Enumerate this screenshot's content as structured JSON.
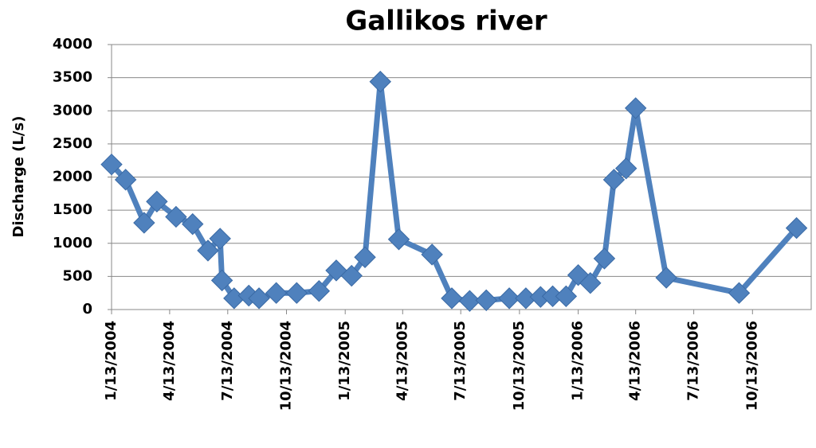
{
  "chart_data": {
    "type": "line",
    "title": "Gallikos river",
    "y_label": "Discharge (L/s)",
    "x": [
      "1/13/2004",
      "2/4/2004",
      "3/4/2004",
      "3/24/2004",
      "4/23/2004",
      "5/19/2004",
      "6/12/2004",
      "7/1/2004",
      "7/4/2004",
      "7/23/2004",
      "8/15/2004",
      "8/31/2004",
      "9/27/2004",
      "10/29/2004",
      "12/3/2004",
      "12/30/2004",
      "1/23/2005",
      "2/13/2005",
      "3/9/2005",
      "4/7/2005",
      "5/29/2005",
      "6/29/2005",
      "7/27/2005",
      "8/22/2005",
      "9/27/2005",
      "10/23/2005",
      "11/15/2005",
      "12/4/2005",
      "12/25/2005",
      "1/13/2006",
      "2/1/2006",
      "2/23/2006",
      "3/10/2006",
      "3/29/2006",
      "4/13/2006",
      "5/31/2006",
      "9/22/2006",
      "12/21/2006"
    ],
    "series": [
      {
        "name": "Discharge",
        "color": "#4f81bd",
        "values": [
          2190,
          1960,
          1310,
          1630,
          1400,
          1290,
          890,
          1070,
          440,
          170,
          210,
          170,
          250,
          250,
          280,
          590,
          510,
          790,
          3440,
          1060,
          830,
          170,
          130,
          140,
          170,
          170,
          190,
          200,
          200,
          520,
          400,
          770,
          1960,
          2130,
          3040,
          480,
          250,
          1230
        ]
      }
    ],
    "xlim": [
      "1/13/2004",
      "1/13/2007"
    ],
    "xticks": [
      "1/13/2004",
      "4/13/2004",
      "7/13/2004",
      "10/13/2004",
      "1/13/2005",
      "4/13/2005",
      "7/13/2005",
      "10/13/2005",
      "1/13/2006",
      "4/13/2006",
      "7/13/2006",
      "10/13/2006"
    ],
    "ylim": [
      0,
      4000
    ],
    "yticks": [
      0,
      500,
      1000,
      1500,
      2000,
      2500,
      3000,
      3500,
      4000
    ],
    "grid": true
  }
}
